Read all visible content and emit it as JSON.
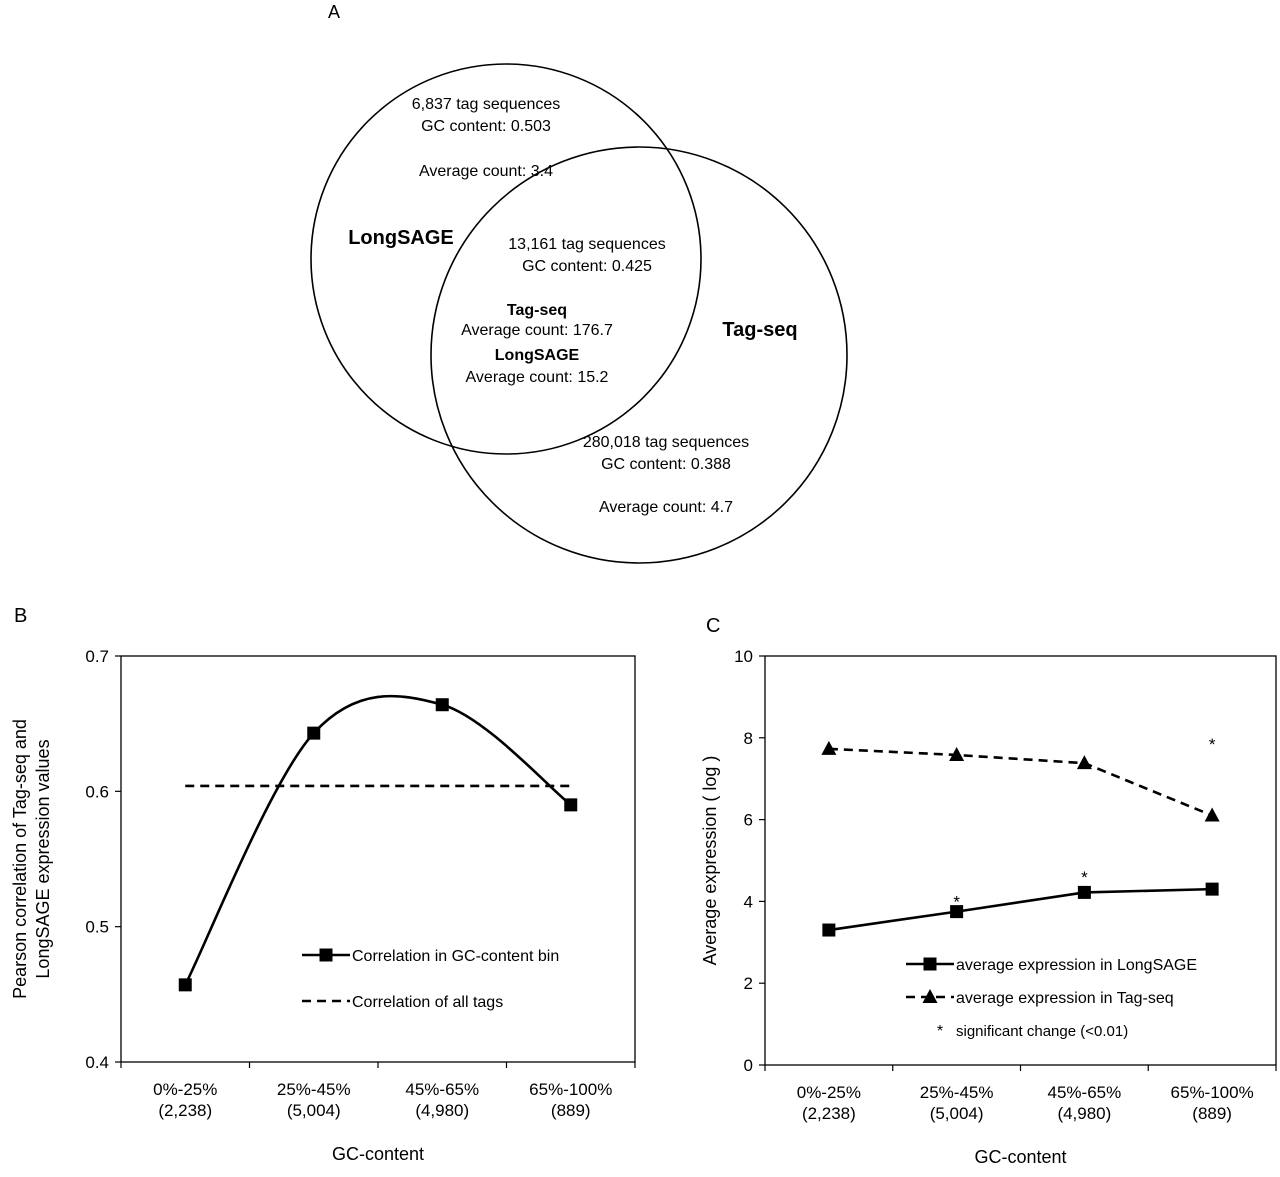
{
  "panels": {
    "venn": {
      "label": "A",
      "longsage_label": "LongSAGE",
      "tagseq_label": "Tag-seq",
      "longsage_only": {
        "tags": "6,837 tag sequences",
        "gc": "GC content: 0.503",
        "avg": "Average count: 3.4"
      },
      "overlap": {
        "tags": "13,161 tag sequences",
        "gc": "GC content: 0.425",
        "tagseq_heading": "Tag-seq",
        "tagseq_avg": "Average count: 176.7",
        "longsage_heading": "LongSAGE",
        "longsage_avg": "Average count: 15.2"
      },
      "tagseq_only": {
        "tags": "280,018 tag sequences",
        "gc": "GC content: 0.388",
        "avg": "Average count: 4.7"
      }
    },
    "b_label": "B",
    "c_label": "C"
  },
  "chart_data": [
    {
      "type": "line",
      "categories": [
        "0%-25%\n(2,238)",
        "25%-45%\n(5,004)",
        "45%-65%\n(4,980)",
        "65%-100%\n(889)"
      ],
      "xlabel": "GC-content",
      "ylabel": "Pearson correlation of Tag-seq and\nLongSAGE expression values",
      "ylim": [
        0.4,
        0.7
      ],
      "yticks": [
        "0.4",
        "0.5",
        "0.6",
        "0.7"
      ],
      "series": [
        {
          "name": "Correlation in GC-content bin",
          "values": [
            0.457,
            0.643,
            0.664,
            0.59
          ],
          "style": "solid-square-smooth"
        },
        {
          "name": "Correlation of all tags",
          "values": [
            0.604,
            0.604,
            0.604,
            0.604
          ],
          "style": "dashed"
        }
      ],
      "legend": "center-right"
    },
    {
      "type": "line",
      "categories": [
        "0%-25%\n(2,238)",
        "25%-45%\n(5,004)",
        "45%-65%\n(4,980)",
        "65%-100%\n(889)"
      ],
      "xlabel": "GC-content",
      "ylabel": "Average expression ( log )",
      "ylim": [
        0,
        10
      ],
      "yticks": [
        "0",
        "2",
        "4",
        "6",
        "8",
        "10"
      ],
      "series": [
        {
          "name": "average expression in LongSAGE",
          "values": [
            3.3,
            3.75,
            4.22,
            4.3
          ],
          "style": "solid-square"
        },
        {
          "name": "average expression in Tag-seq",
          "values": [
            7.73,
            7.58,
            7.38,
            6.1
          ],
          "style": "dashed-triangle"
        }
      ],
      "significance": {
        "marker": "*",
        "legend_text": "significant change (<0.01)",
        "points": [
          {
            "x": 1.5,
            "y": 4.05
          },
          {
            "x": 2.5,
            "y": 4.65
          },
          {
            "x": 3.5,
            "y": 7.9
          }
        ]
      },
      "legend": "bottom-right"
    }
  ]
}
